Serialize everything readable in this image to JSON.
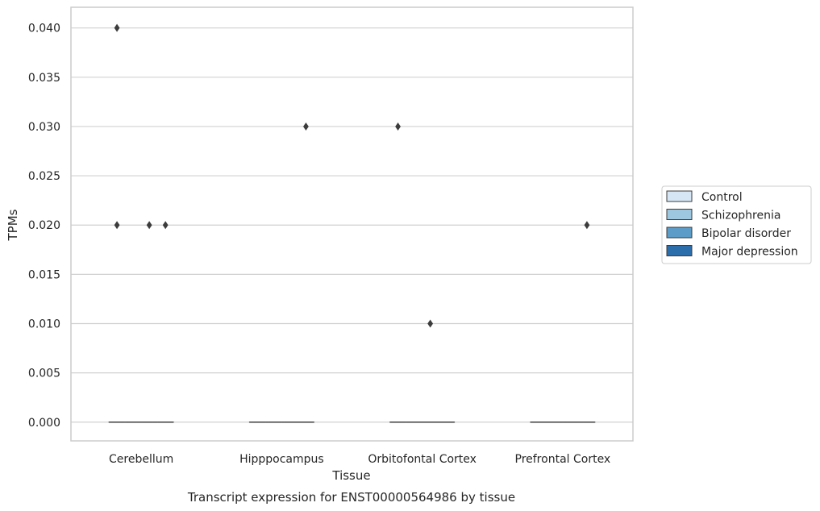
{
  "chart_data": {
    "type": "box",
    "title": "",
    "caption": "Transcript expression for ENST00000564986 by tissue",
    "xlabel": "Tissue",
    "ylabel": "TPMs",
    "ylim": [
      -0.0019,
      0.0421
    ],
    "yticks": [
      "0.000",
      "0.005",
      "0.010",
      "0.015",
      "0.020",
      "0.025",
      "0.030",
      "0.035",
      "0.040"
    ],
    "ytick_values": [
      0,
      0.005,
      0.01,
      0.015,
      0.02,
      0.025,
      0.03,
      0.035,
      0.04
    ],
    "grid": "horizontal",
    "legend_position": "right",
    "categories": [
      "Cerebellum",
      "Hipppocampus",
      "Orbitofontal Cortex",
      "Prefrontal Cortex"
    ],
    "series": [
      {
        "name": "Control",
        "color": "#d6e6f4",
        "boxes": [
          {
            "q1": 0,
            "median": 0,
            "q3": 0,
            "whisker_low": 0,
            "whisker_high": 0
          },
          {
            "q1": 0,
            "median": 0,
            "q3": 0,
            "whisker_low": 0,
            "whisker_high": 0
          },
          {
            "q1": 0,
            "median": 0,
            "q3": 0,
            "whisker_low": 0,
            "whisker_high": 0
          },
          {
            "q1": 0,
            "median": 0,
            "q3": 0,
            "whisker_low": 0,
            "whisker_high": 0
          }
        ],
        "outliers": [
          [
            0.04,
            0.02
          ],
          [],
          [
            0.03
          ],
          []
        ]
      },
      {
        "name": "Schizophrenia",
        "color": "#9dc7e0",
        "boxes": [
          {
            "q1": 0,
            "median": 0,
            "q3": 0,
            "whisker_low": 0,
            "whisker_high": 0
          },
          {
            "q1": 0,
            "median": 0,
            "q3": 0,
            "whisker_low": 0,
            "whisker_high": 0
          },
          {
            "q1": 0,
            "median": 0,
            "q3": 0,
            "whisker_low": 0,
            "whisker_high": 0
          },
          {
            "q1": 0,
            "median": 0,
            "q3": 0,
            "whisker_low": 0,
            "whisker_high": 0
          }
        ],
        "outliers": [
          [],
          [],
          [],
          []
        ]
      },
      {
        "name": "Bipolar disorder",
        "color": "#5b9cc9",
        "boxes": [
          {
            "q1": 0,
            "median": 0,
            "q3": 0,
            "whisker_low": 0,
            "whisker_high": 0
          },
          {
            "q1": 0,
            "median": 0,
            "q3": 0,
            "whisker_low": 0,
            "whisker_high": 0
          },
          {
            "q1": 0,
            "median": 0,
            "q3": 0,
            "whisker_low": 0,
            "whisker_high": 0
          },
          {
            "q1": 0,
            "median": 0,
            "q3": 0,
            "whisker_low": 0,
            "whisker_high": 0
          }
        ],
        "outliers": [
          [
            0.02
          ],
          [],
          [
            0.01
          ],
          []
        ]
      },
      {
        "name": "Major depression",
        "color": "#2c6eab",
        "boxes": [
          {
            "q1": 0,
            "median": 0,
            "q3": 0,
            "whisker_low": 0,
            "whisker_high": 0
          },
          {
            "q1": 0,
            "median": 0,
            "q3": 0,
            "whisker_low": 0,
            "whisker_high": 0
          },
          {
            "q1": 0,
            "median": 0,
            "q3": 0,
            "whisker_low": 0,
            "whisker_high": 0
          },
          {
            "q1": 0,
            "median": 0,
            "q3": 0,
            "whisker_low": 0,
            "whisker_high": 0
          }
        ],
        "outliers": [
          [
            0.02
          ],
          [
            0.03
          ],
          [],
          [
            0.02
          ]
        ]
      }
    ]
  }
}
